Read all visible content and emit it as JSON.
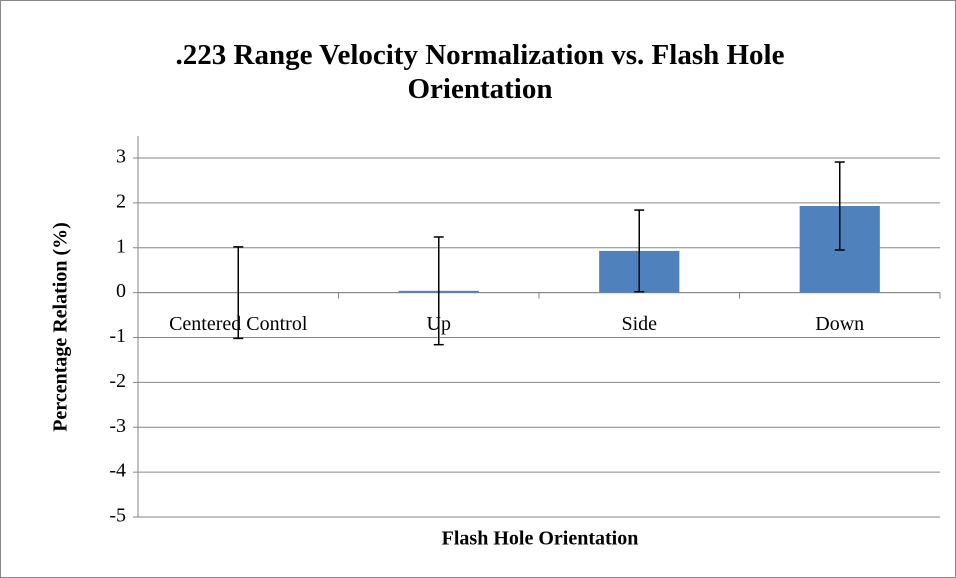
{
  "chart_data": {
    "type": "bar",
    "title": ".223 Range Velocity Normalization vs. Flash Hole Orientation",
    "x_label": "Flash Hole Orientation",
    "y_label": "Percentage Relation (%)",
    "categories": [
      "Centered Control",
      "Up",
      "Side",
      "Down"
    ],
    "values": [
      0,
      0.04,
      0.93,
      1.93
    ],
    "errors": [
      1.02,
      1.2,
      0.91,
      0.98
    ],
    "color": "#4f81bd",
    "ylim": [
      -5,
      3
    ],
    "yticks": [
      -5,
      -4,
      -3,
      -2,
      -1,
      0,
      1,
      2,
      3
    ],
    "grid": true
  }
}
